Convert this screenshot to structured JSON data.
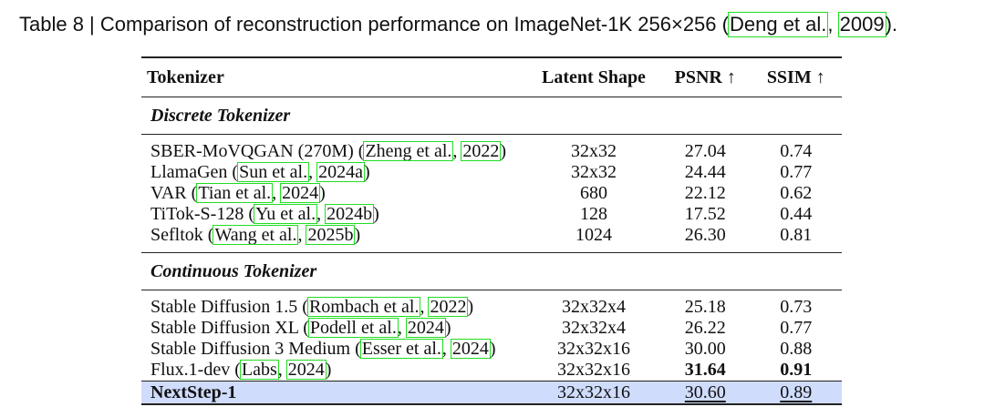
{
  "caption": {
    "prefix": "Table 8 | Comparison of reconstruction performance on ImageNet-1K 256×256 (",
    "cite_authors": "Deng et al.",
    "sep": ", ",
    "cite_year": "2009",
    "suffix": ")."
  },
  "table": {
    "headers": {
      "tokenizer": "Tokenizer",
      "latent_shape": "Latent Shape",
      "psnr": "PSNR ↑",
      "ssim": "SSIM ↑"
    },
    "sections": {
      "discrete": "Discrete Tokenizer",
      "continuous": "Continuous Tokenizer"
    },
    "discrete_rows": [
      {
        "name": "SBER-MoVQGAN (270M) (",
        "cite_a": "Zheng et al.",
        "cite_y": "2022",
        "latent": "32x32",
        "psnr": "27.04",
        "ssim": "0.74"
      },
      {
        "name": "LlamaGen (",
        "cite_a": "Sun et al.",
        "cite_y": "2024a",
        "latent": "32x32",
        "psnr": "24.44",
        "ssim": "0.77"
      },
      {
        "name": "VAR (",
        "cite_a": "Tian et al.",
        "cite_y": "2024",
        "latent": "680",
        "psnr": "22.12",
        "ssim": "0.62"
      },
      {
        "name": "TiTok-S-128 (",
        "cite_a": "Yu et al.",
        "cite_y": "2024b",
        "latent": "128",
        "psnr": "17.52",
        "ssim": "0.44"
      },
      {
        "name": "Sefltok (",
        "cite_a": "Wang et al.",
        "cite_y": "2025b",
        "latent": "1024",
        "psnr": "26.30",
        "ssim": "0.81"
      }
    ],
    "continuous_rows": [
      {
        "name": "Stable Diffusion 1.5 (",
        "cite_a": "Rombach et al.",
        "cite_y": "2022",
        "latent": "32x32x4",
        "psnr": "25.18",
        "ssim": "0.73"
      },
      {
        "name": "Stable Diffusion XL (",
        "cite_a": "Podell et al.",
        "cite_y": "2024",
        "latent": "32x32x4",
        "psnr": "26.22",
        "ssim": "0.77"
      },
      {
        "name": "Stable Diffusion 3 Medium (",
        "cite_a": "Esser et al.",
        "cite_y": "2024",
        "latent": "32x32x16",
        "psnr": "30.00",
        "ssim": "0.88"
      },
      {
        "name": "Flux.1-dev (",
        "cite_a": "Labs",
        "cite_y": "2024",
        "latent": "32x32x16",
        "psnr": "31.64",
        "ssim": "0.91"
      }
    ],
    "ours": {
      "name": "NextStep-1",
      "latent": "32x32x16",
      "psnr": "30.60",
      "ssim": "0.89"
    },
    "cite_sep": ", ",
    "cite_close": ")"
  },
  "colors": {
    "citation_box": "#22dd22",
    "highlight_row": "#cfdcfb"
  }
}
